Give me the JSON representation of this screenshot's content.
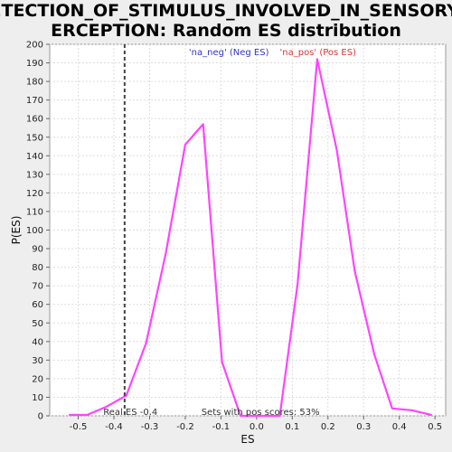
{
  "chart_data": {
    "type": "line",
    "title": "DETECTION_OF_STIMULUS_INVOLVED_IN_SENSORY_PERCEPTION: Random ES distribution",
    "title_lines": [
      "DETECTION_OF_STIMULUS_INVOLVED_IN_SENSORY_P",
      "ERCEPTION: Random ES distribution"
    ],
    "xlabel": "ES",
    "ylabel": "P(ES)",
    "xlim": [
      -0.58,
      0.53
    ],
    "ylim": [
      0,
      200
    ],
    "x_ticks": [
      -0.5,
      -0.4,
      -0.3,
      -0.2,
      -0.1,
      0.0,
      0.1,
      0.2,
      0.3,
      0.4,
      0.5
    ],
    "x_tick_labels": [
      "-0.5",
      "-0.4",
      "-0.3",
      "-0.2",
      "-0.1",
      "0.0",
      "0.1",
      "0.2",
      "0.3",
      "0.4",
      "0.5"
    ],
    "y_ticks": [
      0,
      10,
      20,
      30,
      40,
      50,
      60,
      70,
      80,
      90,
      100,
      110,
      120,
      130,
      140,
      150,
      160,
      170,
      180,
      190,
      200
    ],
    "grid": true,
    "series": [
      {
        "x": [
          -0.525,
          -0.475,
          -0.42,
          -0.365,
          -0.31,
          -0.255,
          -0.2,
          -0.15,
          -0.097,
          -0.045,
          0.0,
          0.065,
          0.115,
          0.17,
          0.225,
          0.275,
          0.33,
          0.38,
          0.435,
          0.49
        ],
        "y": [
          0.5,
          0.5,
          5,
          11,
          39,
          87,
          146,
          157,
          29,
          0,
          0,
          0,
          71,
          192,
          143,
          78,
          33,
          4,
          3,
          0.5
        ],
        "color": "#ff44ff"
      }
    ],
    "reference_line": {
      "x": -0.37,
      "label": "Real ES -0.4",
      "color": "#444444"
    },
    "legend": [
      {
        "text": "'na_neg' (Neg ES)",
        "color": "#3333cc"
      },
      {
        "text": "'na_pos' (Pos ES)",
        "color": "#dd3333"
      }
    ],
    "annotations": {
      "real_es": "Real ES -0.4",
      "sets_pos": "Sets with pos scores: 53%"
    }
  }
}
